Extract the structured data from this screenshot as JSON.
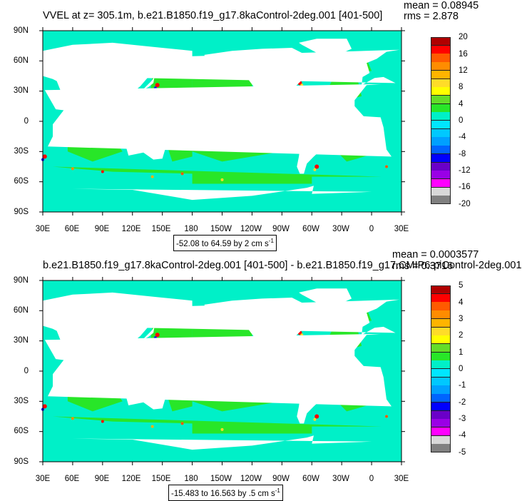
{
  "panels": [
    {
      "title": "VVEL at z= 305.1m, b.e21.B1850.f19_g17.8kaControl-2deg.001 [401-500]",
      "stats": {
        "mean": "mean = 0.08945",
        "rms": "rms = 2.878"
      },
      "range_label": "-52.08 to 64.59 by 2 cm s",
      "range_unit_exp": "-1",
      "colorbar_labels": [
        "20",
        "16",
        "12",
        "8",
        "4",
        "0",
        "-4",
        "-8",
        "-12",
        "-16",
        "-20"
      ],
      "colorbar_colors": [
        "#b00000",
        "#ff0000",
        "#ff5a00",
        "#ff8c00",
        "#ffb400",
        "#ffdc28",
        "#ffff00",
        "#64dc28",
        "#28e628",
        "#00f0c8",
        "#00e6ff",
        "#00c8ff",
        "#00a0ff",
        "#0064ff",
        "#0000ff",
        "#6a00c8",
        "#9a00e6",
        "#ff00ff",
        "#d8d8d8",
        "#808080"
      ]
    },
    {
      "title": "b.e21.B1850.f19_g17.8kaControl-2deg.001 [401-500] - b.e21.B1850.f19_g17.CMIP6-piControl-2deg.001",
      "stats": {
        "mean": "mean = 0.0003577",
        "rms": "rms = 0.3716"
      },
      "range_label": "-15.483 to 16.563 by .5 cm s",
      "range_unit_exp": "-1",
      "colorbar_labels": [
        "5",
        "4",
        "3",
        "2",
        "1",
        "0",
        "-1",
        "-2",
        "-3",
        "-4",
        "-5"
      ],
      "colorbar_colors": [
        "#b00000",
        "#ff0000",
        "#ff5a00",
        "#ff8c00",
        "#ffb400",
        "#ffdc28",
        "#ffff00",
        "#64dc28",
        "#28e628",
        "#00f0c8",
        "#00e6ff",
        "#00c8ff",
        "#00a0ff",
        "#0064ff",
        "#0000ff",
        "#6a00c8",
        "#9a00e6",
        "#ff00ff",
        "#d8d8d8",
        "#808080"
      ]
    }
  ],
  "axes": {
    "x_ticks": [
      "30E",
      "60E",
      "90E",
      "120E",
      "150E",
      "180",
      "150W",
      "120W",
      "90W",
      "60W",
      "30W",
      "0",
      "30E"
    ],
    "y_ticks": [
      "90N",
      "60N",
      "30N",
      "0",
      "30S",
      "60S",
      "90S"
    ]
  },
  "colors": {
    "ocean_base": "#00f0c8",
    "ocean_positive": "#28e628",
    "land": "#ffffff"
  }
}
